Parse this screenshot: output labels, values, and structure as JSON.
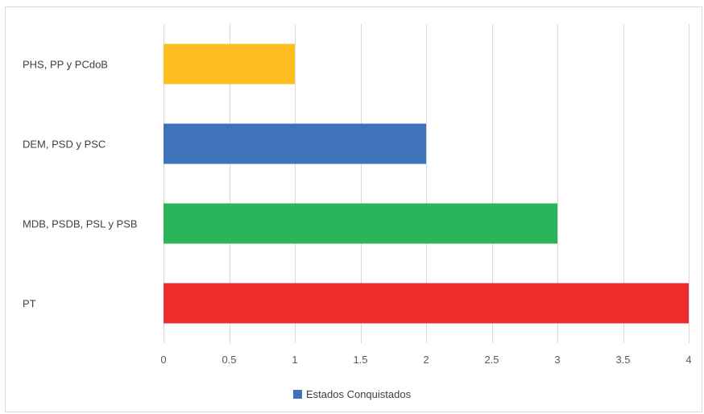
{
  "chart_data": {
    "type": "bar",
    "orientation": "horizontal",
    "categories": [
      "PHS, PP y PCdoB",
      "DEM, PSD y PSC",
      "MDB, PSDB, PSL y PSB",
      "PT"
    ],
    "values": [
      1,
      2,
      3,
      4
    ],
    "bar_colors": [
      "#FDBE1F",
      "#3F72BB",
      "#2BB55B",
      "#EE2C2C"
    ],
    "series": [
      {
        "name": "Estados Conquistados",
        "values": [
          1,
          2,
          3,
          4
        ],
        "color": "#3F72BB"
      }
    ],
    "title": "",
    "xlabel": "",
    "ylabel": "",
    "xlim": [
      0,
      4
    ],
    "x_ticks": [
      0,
      0.5,
      1,
      1.5,
      2,
      2.5,
      3,
      3.5,
      4
    ],
    "grid": "vertical",
    "legend_position": "bottom"
  }
}
